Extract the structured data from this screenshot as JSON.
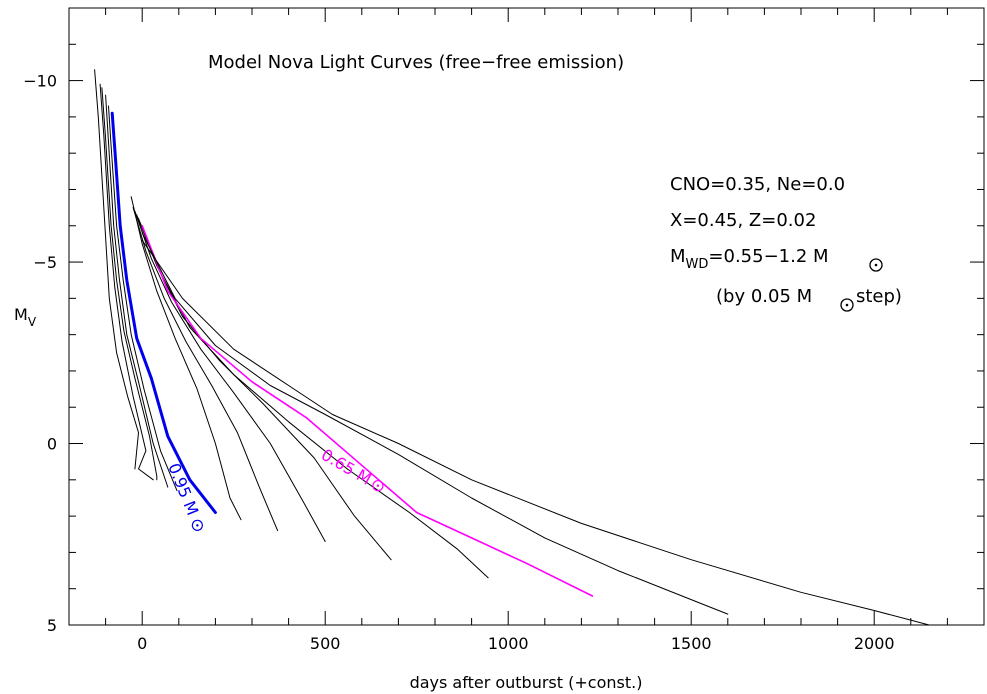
{
  "chart_data": {
    "type": "line",
    "title": "Model Nova Light Curves (free−free emission)",
    "xlabel": "days after outburst (+const.)",
    "ylabel": "M",
    "ylabel_sub": "V",
    "xlim": [
      -200,
      2300
    ],
    "ylim": [
      5,
      -12
    ],
    "y_inverted": true,
    "x_ticks": [
      0,
      500,
      1000,
      1500,
      2000
    ],
    "x_tick_labels": [
      "0",
      "500",
      "1000",
      "1500",
      "2000"
    ],
    "y_ticks": [
      -10,
      -5,
      0,
      5
    ],
    "y_tick_labels": [
      "−10",
      "−5",
      "0",
      "5"
    ],
    "grid": false,
    "annotations": {
      "line1": "CNO=0.35, Ne=0.0",
      "line2": "X=0.45, Z=0.02",
      "line3_main": "M",
      "line3_sub": "WD",
      "line3_rest": "=0.55−1.2 M",
      "line4_a": "(by 0.05 M",
      "line4_b": " step)",
      "label_095": "0.95 M",
      "label_065": "0.65 M"
    },
    "colors": {
      "default": "#000000",
      "highlight_095": "#0000ee",
      "highlight_065": "#ff00ff"
    },
    "series": [
      {
        "values": [
          [
            -130,
            -10.3
          ],
          [
            -120,
            -9.0
          ],
          [
            -105,
            -6.5
          ],
          [
            -90,
            -4.0
          ],
          [
            -70,
            -2.5
          ],
          [
            -40,
            -1.3
          ],
          [
            -10,
            -0.3
          ],
          [
            -20,
            0.7
          ]
        ],
        "color": "#000000"
      },
      {
        "values": [
          [
            -115,
            -9.9
          ],
          [
            -105,
            -8.5
          ],
          [
            -90,
            -6.0
          ],
          [
            -75,
            -4.3
          ],
          [
            -55,
            -2.8
          ],
          [
            -25,
            -1.3
          ],
          [
            10,
            0.2
          ],
          [
            -10,
            0.7
          ],
          [
            30,
            1.0
          ]
        ],
        "color": "#000000"
      },
      {
        "values": [
          [
            -110,
            -9.8
          ],
          [
            -100,
            -8.4
          ],
          [
            -85,
            -6.0
          ],
          [
            -70,
            -4.5
          ],
          [
            -50,
            -3.1
          ],
          [
            -20,
            -1.8
          ],
          [
            20,
            -0.2
          ],
          [
            40,
            0.9
          ],
          [
            40,
            1.0
          ]
        ],
        "color": "#000000"
      },
      {
        "values": [
          [
            -100,
            -9.6
          ],
          [
            -92,
            -8.3
          ],
          [
            -78,
            -6.0
          ],
          [
            -62,
            -4.5
          ],
          [
            -42,
            -3.0
          ],
          [
            -10,
            -1.7
          ],
          [
            30,
            0.0
          ],
          [
            70,
            1.2
          ]
        ],
        "color": "#000000"
      },
      {
        "values": [
          [
            -92,
            -9.3
          ],
          [
            -85,
            -8.2
          ],
          [
            -70,
            -6.0
          ],
          [
            -52,
            -4.5
          ],
          [
            -30,
            -3.0
          ],
          [
            5,
            -1.5
          ],
          [
            50,
            0.2
          ],
          [
            95,
            1.3
          ]
        ],
        "color": "#000000"
      },
      {
        "values": [
          [
            -82,
            -9.1
          ],
          [
            -74,
            -8.0
          ],
          [
            -60,
            -6.0
          ],
          [
            -42,
            -4.5
          ],
          [
            -15,
            -2.9
          ],
          [
            25,
            -1.8
          ],
          [
            70,
            -0.2
          ],
          [
            130,
            1.0
          ],
          [
            200,
            1.9
          ]
        ],
        "color": "#0000ee",
        "width": 3
      },
      {
        "values": [
          [
            -30,
            -6.8
          ],
          [
            0,
            -5.5
          ],
          [
            40,
            -4.2
          ],
          [
            90,
            -2.9
          ],
          [
            150,
            -1.5
          ],
          [
            200,
            0.0
          ],
          [
            240,
            1.5
          ],
          [
            270,
            2.1
          ]
        ],
        "color": "#000000"
      },
      {
        "values": [
          [
            -25,
            -6.5
          ],
          [
            10,
            -5.3
          ],
          [
            60,
            -4.0
          ],
          [
            120,
            -2.8
          ],
          [
            190,
            -1.6
          ],
          [
            260,
            -0.3
          ],
          [
            320,
            1.2
          ],
          [
            370,
            2.4
          ]
        ],
        "color": "#000000"
      },
      {
        "values": [
          [
            -20,
            -6.4
          ],
          [
            25,
            -5.1
          ],
          [
            80,
            -3.9
          ],
          [
            160,
            -2.6
          ],
          [
            250,
            -1.4
          ],
          [
            350,
            0.0
          ],
          [
            440,
            1.6
          ],
          [
            500,
            2.7
          ]
        ],
        "color": "#000000"
      },
      {
        "values": [
          [
            -15,
            -6.3
          ],
          [
            40,
            -4.9
          ],
          [
            110,
            -3.5
          ],
          [
            210,
            -2.3
          ],
          [
            330,
            -1.1
          ],
          [
            470,
            0.4
          ],
          [
            580,
            2.0
          ],
          [
            680,
            3.2
          ]
        ],
        "color": "#000000"
      },
      {
        "values": [
          [
            -10,
            -6.2
          ],
          [
            50,
            -4.7
          ],
          [
            130,
            -3.2
          ],
          [
            250,
            -1.9
          ],
          [
            400,
            -0.6
          ],
          [
            560,
            0.7
          ],
          [
            730,
            1.9
          ],
          [
            860,
            2.9
          ],
          [
            945,
            3.7
          ]
        ],
        "color": "#000000"
      },
      {
        "values": [
          [
            0,
            -6.0
          ],
          [
            70,
            -4.2
          ],
          [
            160,
            -2.9
          ],
          [
            300,
            -1.7
          ],
          [
            450,
            -0.7
          ],
          [
            600,
            0.6
          ],
          [
            750,
            1.9
          ],
          [
            900,
            2.6
          ],
          [
            1050,
            3.3
          ],
          [
            1230,
            4.2
          ]
        ],
        "color": "#ff00ff",
        "width": 1.6
      },
      {
        "values": [
          [
            0,
            -5.8
          ],
          [
            90,
            -4.0
          ],
          [
            200,
            -2.7
          ],
          [
            350,
            -1.6
          ],
          [
            500,
            -0.8
          ],
          [
            700,
            0.3
          ],
          [
            900,
            1.5
          ],
          [
            1100,
            2.6
          ],
          [
            1300,
            3.5
          ],
          [
            1500,
            4.3
          ],
          [
            1600,
            4.7
          ]
        ],
        "color": "#000000"
      },
      {
        "values": [
          [
            0,
            -5.6
          ],
          [
            110,
            -4.0
          ],
          [
            250,
            -2.6
          ],
          [
            400,
            -1.6
          ],
          [
            520,
            -0.8
          ],
          [
            700,
            0.0
          ],
          [
            900,
            1.0
          ],
          [
            1200,
            2.2
          ],
          [
            1500,
            3.2
          ],
          [
            1800,
            4.1
          ],
          [
            2000,
            4.6
          ],
          [
            2150,
            5.0
          ]
        ],
        "color": "#000000"
      }
    ]
  }
}
